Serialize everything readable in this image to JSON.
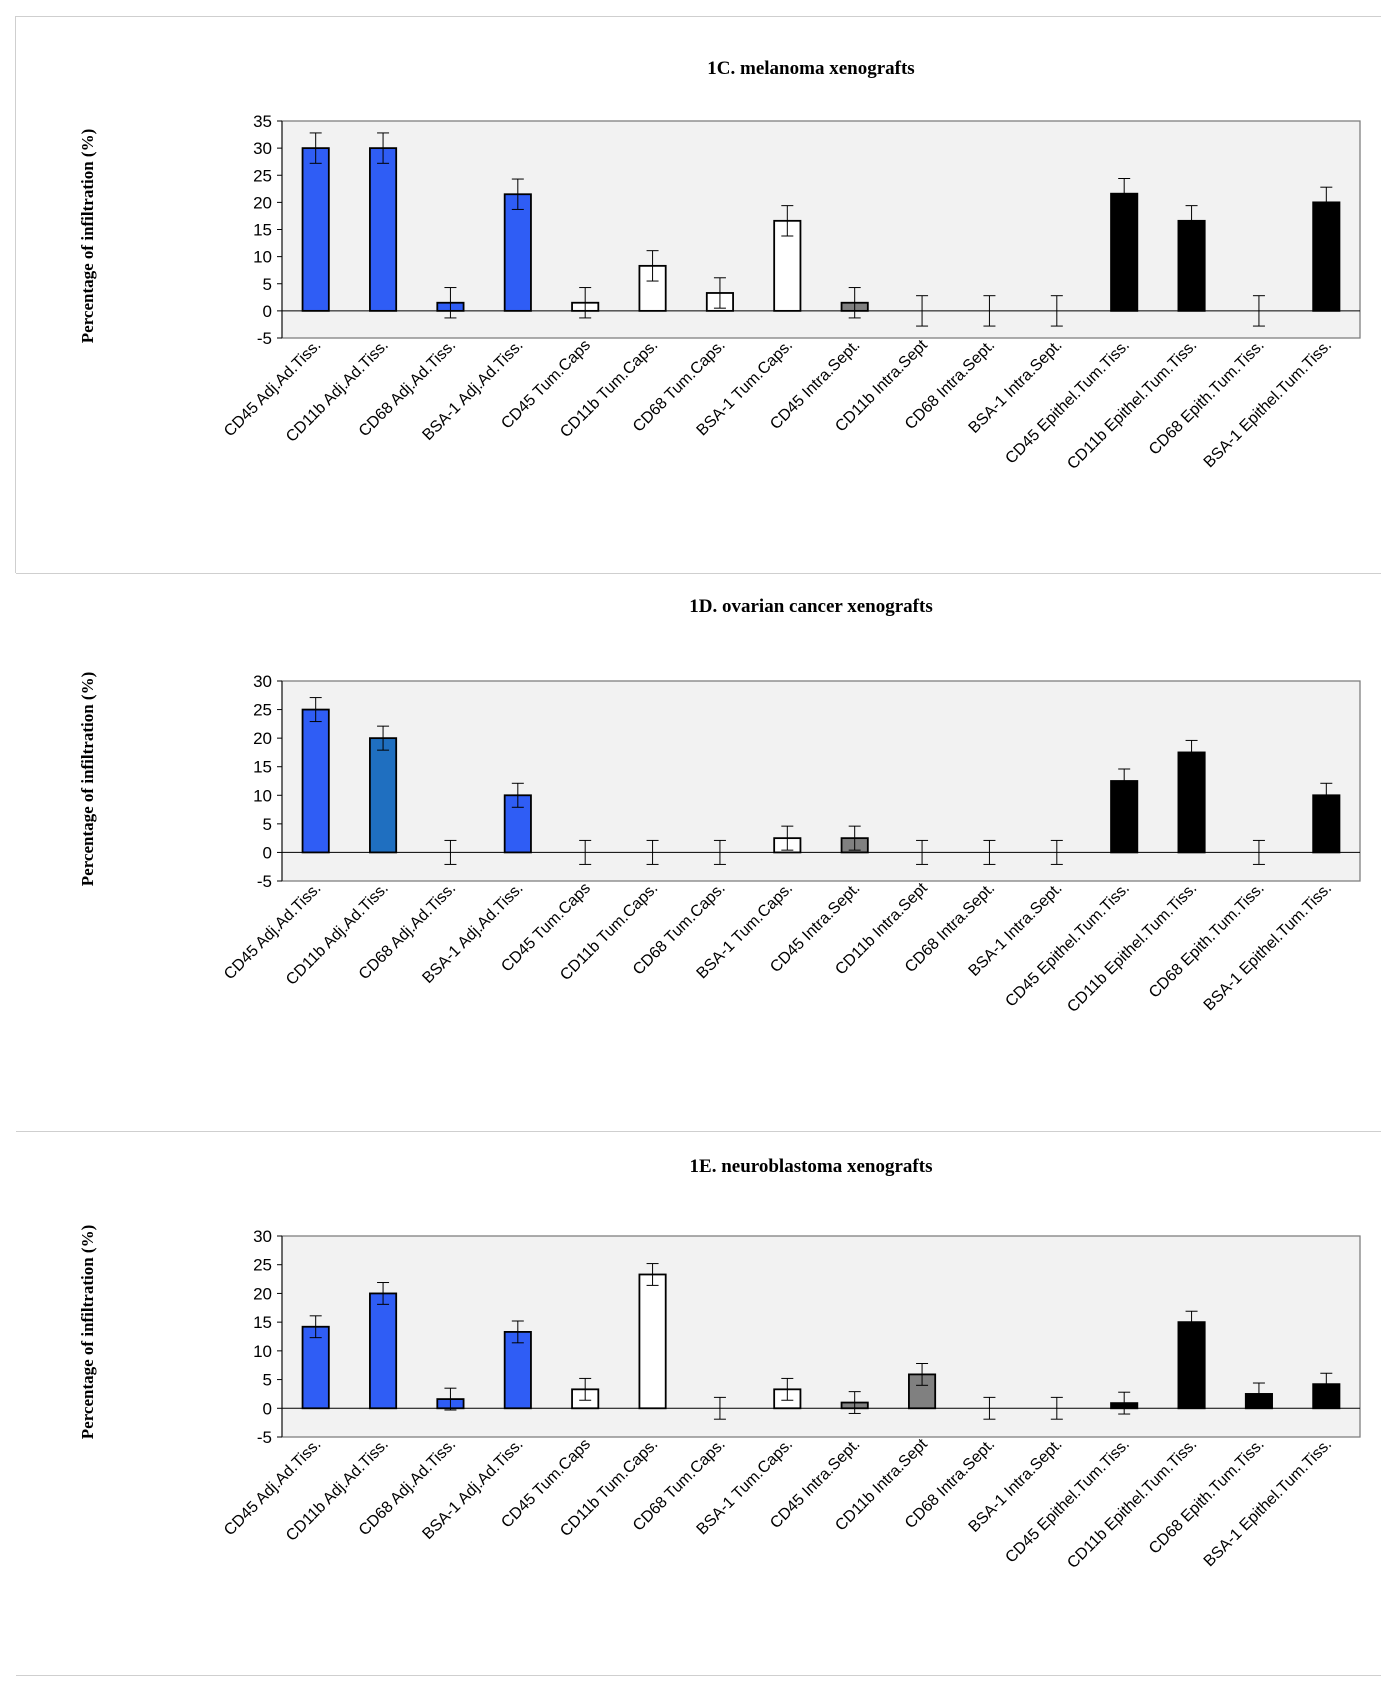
{
  "chart_data": [
    {
      "type": "bar",
      "title": "1C.  melanoma xenografts",
      "ylabel": "Percentage of infiltration (%)",
      "ylim": [
        -5,
        35
      ],
      "yticks": [
        35,
        30,
        25,
        20,
        15,
        10,
        5,
        0,
        -5
      ],
      "categories": [
        "CD45 Adj.Ad.Tiss.",
        "CD11b Adj.Ad.Tiss.",
        "CD68 Adj.Ad.Tiss.",
        "BSA-1 Adj.Ad.Tiss.",
        "CD45 Tum.Caps",
        "CD11b Tum.Caps.",
        "CD68 Tum.Caps.",
        "BSA-1 Tum.Caps.",
        "CD45 Intra.Sept.",
        "CD11b Intra.Sept",
        "CD68 Intra.Sept.",
        "BSA-1 Intra.Sept.",
        "CD45 Epithel.Tum.Tiss.",
        "CD11b Epithel.Tum.Tiss.",
        "CD68 Epith.Tum.Tiss.",
        "BSA-1 Epithel.Tum.Tiss."
      ],
      "values": [
        30,
        30,
        1.5,
        21.5,
        1.5,
        8.3,
        3.3,
        16.6,
        1.5,
        0,
        0,
        0,
        21.6,
        16.6,
        0,
        20
      ],
      "errors": [
        2.8,
        2.8,
        2.8,
        2.8,
        2.8,
        2.8,
        2.8,
        2.8,
        2.8,
        2.8,
        2.8,
        2.8,
        2.8,
        2.8,
        2.8,
        2.8
      ],
      "colors": [
        "#2f5df5",
        "#2f5df5",
        "#2f5df5",
        "#2f5df5",
        "#ffffff",
        "#ffffff",
        "#ffffff",
        "#ffffff",
        "#808080",
        "#808080",
        "#808080",
        "#808080",
        "#000000",
        "#000000",
        "#000000",
        "#000000"
      ]
    },
    {
      "type": "bar",
      "title": "1D.  ovarian cancer xenografts",
      "ylabel": "Percentage of infiltration (%)",
      "ylim": [
        -5,
        30
      ],
      "yticks": [
        30,
        25,
        20,
        15,
        10,
        5,
        0,
        -5
      ],
      "categories": [
        "CD45 Adj.Ad.Tiss.",
        "CD11b Adj.Ad.Tiss.",
        "CD68 Adj.Ad.Tiss.",
        "BSA-1 Adj.Ad.Tiss.",
        "CD45 Tum.Caps",
        "CD11b Tum.Caps.",
        "CD68 Tum.Caps.",
        "BSA-1 Tum.Caps.",
        "CD45 Intra.Sept.",
        "CD11b Intra.Sept",
        "CD68 Intra.Sept.",
        "BSA-1 Intra.Sept.",
        "CD45 Epithel.Tum.Tiss.",
        "CD11b Epithel.Tum.Tiss.",
        "CD68 Epith.Tum.Tiss.",
        "BSA-1 Epithel.Tum.Tiss."
      ],
      "values": [
        25,
        20,
        0,
        10,
        0,
        0,
        0,
        2.5,
        2.5,
        0,
        0,
        0,
        12.5,
        17.5,
        0,
        10
      ],
      "errors": [
        2.1,
        2.1,
        2.1,
        2.1,
        2.1,
        2.1,
        2.1,
        2.1,
        2.1,
        2.1,
        2.1,
        2.1,
        2.1,
        2.1,
        2.1,
        2.1
      ],
      "colors": [
        "#2f5df5",
        "#1f6fc0",
        "#2f5df5",
        "#2f5df5",
        "#ffffff",
        "#ffffff",
        "#ffffff",
        "#ffffff",
        "#808080",
        "#808080",
        "#808080",
        "#808080",
        "#000000",
        "#000000",
        "#000000",
        "#000000"
      ]
    },
    {
      "type": "bar",
      "title": "1E.  neuroblastoma xenografts",
      "ylabel": "Percentage of infiltration (%)",
      "ylim": [
        -5,
        30
      ],
      "yticks": [
        30,
        25,
        20,
        15,
        10,
        5,
        0,
        -5
      ],
      "categories": [
        "CD45 Adj.Ad.Tiss.",
        "CD11b Adj.Ad.Tiss.",
        "CD68 Adj.Ad.Tiss.",
        "BSA-1 Adj.Ad.Tiss.",
        "CD45 Tum.Caps",
        "CD11b Tum.Caps.",
        "CD68 Tum.Caps.",
        "BSA-1 Tum.Caps.",
        "CD45 Intra.Sept.",
        "CD11b Intra.Sept",
        "CD68 Intra.Sept.",
        "BSA-1 Intra.Sept.",
        "CD45 Epithel.Tum.Tiss.",
        "CD11b Epithel.Tum.Tiss.",
        "CD68 Epith.Tum.Tiss.",
        "BSA-1 Epithel.Tum.Tiss."
      ],
      "values": [
        14.2,
        20,
        1.6,
        13.3,
        3.3,
        23.3,
        0,
        3.3,
        1,
        5.9,
        0,
        0,
        0.9,
        15,
        2.5,
        4.2
      ],
      "errors": [
        1.9,
        1.9,
        1.9,
        1.9,
        1.9,
        1.9,
        1.9,
        1.9,
        1.9,
        1.9,
        1.9,
        1.9,
        1.9,
        1.9,
        1.9,
        1.9
      ],
      "colors": [
        "#2f5df5",
        "#2f5df5",
        "#2f5df5",
        "#2f5df5",
        "#ffffff",
        "#ffffff",
        "#ffffff",
        "#ffffff",
        "#808080",
        "#808080",
        "#808080",
        "#808080",
        "#000000",
        "#000000",
        "#000000",
        "#000000"
      ]
    }
  ]
}
